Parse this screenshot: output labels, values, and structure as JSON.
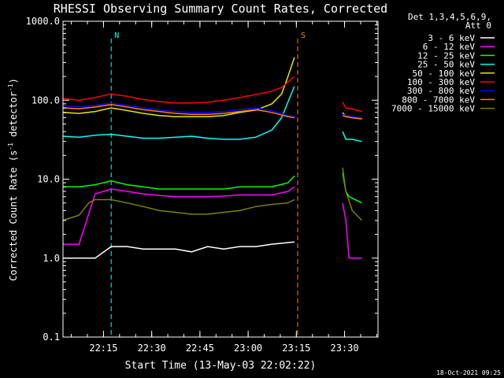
{
  "chart_data": {
    "type": "line",
    "title": "RHESSI Observing Summary Count Rates, Corrected",
    "xlabel": "Start Time (13-May-03 22:02:22)",
    "ylabel_main": "Corrected Count Rate (s",
    "ylabel_sup1": "-1",
    "ylabel_mid": " detector",
    "ylabel_sup2": "-1",
    "ylabel_end": ")",
    "yscale": "log",
    "ylim": [
      0.1,
      1000.0
    ],
    "xlim_minutes": [
      0,
      98
    ],
    "x_ticks": [
      {
        "label": "22:15",
        "minutes": 12.6
      },
      {
        "label": "22:30",
        "minutes": 27.6
      },
      {
        "label": "22:45",
        "minutes": 42.6
      },
      {
        "label": "23:00",
        "minutes": 57.6
      },
      {
        "label": "23:15",
        "minutes": 72.6
      },
      {
        "label": "23:30",
        "minutes": 87.6
      }
    ],
    "y_ticks": [
      {
        "label": "0.1",
        "value": 0.1
      },
      {
        "label": "1.0",
        "value": 1.0
      },
      {
        "label": "10.0",
        "value": 10.0
      },
      {
        "label": "100.0",
        "value": 100.0
      },
      {
        "label": "1000.0",
        "value": 1000.0
      }
    ],
    "legend_header": [
      "Det 1,3,4,5,6,9,",
      "Att 0"
    ],
    "legend_position": "right",
    "series": [
      {
        "name": "3 - 6 keV",
        "color": "#ffffff",
        "x": [
          0,
          10,
          15,
          20,
          25,
          30,
          35,
          40,
          45,
          50,
          55,
          60,
          65,
          72
        ],
        "y": [
          1,
          1,
          1.4,
          1.4,
          1.3,
          1.3,
          1.3,
          1.2,
          1.4,
          1.3,
          1.4,
          1.4,
          1.5,
          1.6
        ]
      },
      {
        "name": "6 - 12 keV",
        "color": "#ff00ff",
        "x": [
          0,
          5,
          10,
          15,
          20,
          25,
          30,
          35,
          40,
          45,
          50,
          55,
          60,
          65,
          70,
          72,
          87,
          88,
          89,
          93
        ],
        "y": [
          1.5,
          1.5,
          6.5,
          7.5,
          7,
          6.5,
          6.2,
          6,
          6,
          6,
          6.1,
          6.3,
          6.3,
          6.3,
          7,
          8,
          5,
          3,
          1,
          1
        ]
      },
      {
        "name": "12 - 25 keV",
        "color": "#00ff00",
        "x": [
          0,
          5,
          10,
          15,
          20,
          25,
          30,
          35,
          40,
          45,
          50,
          55,
          60,
          65,
          70,
          72,
          87,
          88,
          89,
          93
        ],
        "y": [
          8,
          8,
          8.5,
          9.5,
          8.5,
          8,
          7.5,
          7.5,
          7.5,
          7.5,
          7.5,
          8,
          8,
          8,
          9,
          11,
          12,
          7,
          6,
          5
        ]
      },
      {
        "name": "25 - 50 keV",
        "color": "#00ffff",
        "x": [
          0,
          5,
          10,
          15,
          20,
          25,
          30,
          35,
          40,
          45,
          50,
          55,
          60,
          65,
          68,
          70,
          72,
          87,
          88,
          90,
          93
        ],
        "y": [
          35,
          34,
          36,
          37,
          35,
          33,
          33,
          34,
          35,
          33,
          32,
          32,
          34,
          42,
          60,
          95,
          150,
          40,
          32,
          32,
          30
        ]
      },
      {
        "name": "50 - 100 keV",
        "color": "#e6e600",
        "x": [
          0,
          5,
          10,
          15,
          20,
          25,
          30,
          35,
          40,
          45,
          50,
          55,
          60,
          65,
          68,
          70,
          72,
          87,
          88,
          90,
          93
        ],
        "y": [
          70,
          68,
          72,
          80,
          74,
          68,
          64,
          62,
          62,
          62,
          64,
          70,
          75,
          90,
          120,
          200,
          350,
          70,
          62,
          60,
          58
        ]
      },
      {
        "name": "100 - 300 keV",
        "color": "#ff0000",
        "x": [
          0,
          5,
          10,
          15,
          20,
          25,
          30,
          35,
          40,
          45,
          50,
          55,
          60,
          65,
          68,
          70,
          72,
          87,
          88,
          90,
          93
        ],
        "y": [
          105,
          100,
          108,
          120,
          112,
          102,
          96,
          92,
          92,
          94,
          100,
          108,
          118,
          130,
          145,
          170,
          200,
          95,
          80,
          78,
          72
        ]
      },
      {
        "name": "300 - 800 keV",
        "color": "#0000ff",
        "x": [
          0,
          5,
          10,
          15,
          20,
          25,
          30,
          35,
          40,
          45,
          50,
          55,
          60,
          65,
          70,
          72,
          87,
          88,
          90,
          93
        ],
        "y": [
          85,
          82,
          86,
          92,
          86,
          80,
          75,
          72,
          70,
          70,
          72,
          76,
          80,
          74,
          64,
          62,
          66,
          64,
          62,
          60
        ]
      },
      {
        "name": "800 - 7000 keV",
        "color": "#ff8000",
        "x": [
          0,
          5,
          10,
          15,
          20,
          25,
          30,
          35,
          40,
          45,
          50,
          55,
          60,
          65,
          70,
          72,
          87,
          88,
          90,
          93
        ],
        "y": [
          80,
          78,
          82,
          88,
          82,
          76,
          72,
          68,
          66,
          66,
          68,
          72,
          76,
          70,
          62,
          60,
          64,
          62,
          60,
          58
        ]
      },
      {
        "name": "7000 - 15000 keV",
        "color": "#808000",
        "x": [
          0,
          5,
          8,
          10,
          15,
          20,
          25,
          30,
          35,
          40,
          45,
          50,
          55,
          60,
          65,
          70,
          72,
          87,
          88,
          90,
          93
        ],
        "y": [
          3,
          3.5,
          5,
          5.5,
          5.5,
          5,
          4.5,
          4,
          3.8,
          3.6,
          3.6,
          3.8,
          4,
          4.5,
          4.8,
          5,
          5.5,
          14,
          7,
          4,
          3
        ]
      }
    ],
    "annotations": [
      {
        "label": "N",
        "color": "#00ffff",
        "x_minutes": 15
      },
      {
        "label": "S",
        "color": "#ff8000",
        "x_minutes": 73
      }
    ],
    "timestamp": "18-Oct-2021 09:25"
  }
}
